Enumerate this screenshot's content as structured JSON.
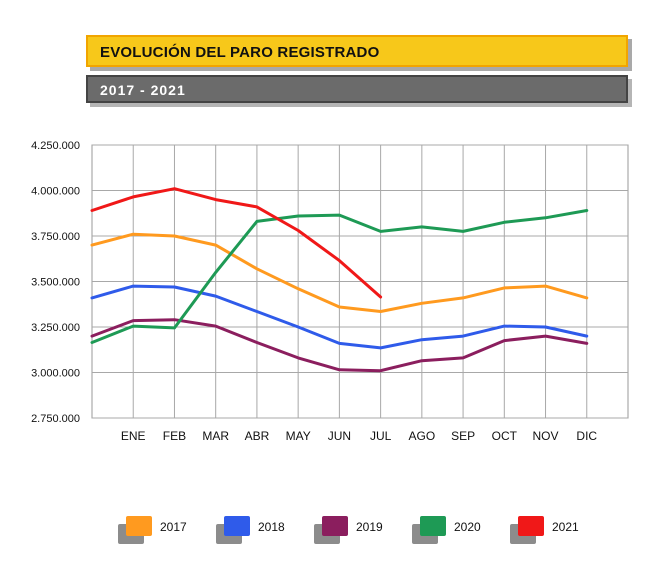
{
  "header": {
    "title": "EVOLUCIÓN DEL PARO REGISTRADO",
    "subtitle": "2017 - 2021"
  },
  "chart_data": {
    "type": "line",
    "title": "EVOLUCIÓN DEL PARO REGISTRADO",
    "subtitle": "2017 - 2021",
    "xlabel": "",
    "ylabel": "",
    "categories": [
      "",
      "ENE",
      "FEB",
      "MAR",
      "ABR",
      "MAY",
      "JUN",
      "JUL",
      "AGO",
      "SEP",
      "OCT",
      "NOV",
      "DIC"
    ],
    "ylim": [
      2750000,
      4250000
    ],
    "yticks": [
      2750000,
      3000000,
      3250000,
      3500000,
      3750000,
      4000000,
      4250000
    ],
    "ytick_labels": [
      "2.750.000",
      "3.000.000",
      "3.250.000",
      "3.500.000",
      "3.750.000",
      "4.000.000",
      "4.250.000"
    ],
    "grid": true,
    "legend_position": "bottom",
    "series": [
      {
        "name": "2017",
        "color": "#ff9a1f",
        "values": [
          3700000,
          3760000,
          3750000,
          3700000,
          3570000,
          3460000,
          3360000,
          3335000,
          3380000,
          3410000,
          3465000,
          3475000,
          3410000
        ]
      },
      {
        "name": "2018",
        "color": "#2f5bea",
        "values": [
          3410000,
          3475000,
          3470000,
          3420000,
          3335000,
          3250000,
          3160000,
          3135000,
          3180000,
          3200000,
          3255000,
          3250000,
          3200000
        ]
      },
      {
        "name": "2019",
        "color": "#8b1e5e",
        "values": [
          3200000,
          3285000,
          3290000,
          3255000,
          3165000,
          3080000,
          3015000,
          3010000,
          3065000,
          3080000,
          3175000,
          3200000,
          3160000
        ]
      },
      {
        "name": "2020",
        "color": "#1e9a55",
        "values": [
          3165000,
          3255000,
          3245000,
          3550000,
          3830000,
          3860000,
          3865000,
          3775000,
          3800000,
          3775000,
          3825000,
          3850000,
          3890000
        ]
      },
      {
        "name": "2021",
        "color": "#f01818",
        "values": [
          3890000,
          3965000,
          4010000,
          3950000,
          3910000,
          3780000,
          3615000,
          3415000,
          null,
          null,
          null,
          null,
          null
        ]
      }
    ]
  }
}
